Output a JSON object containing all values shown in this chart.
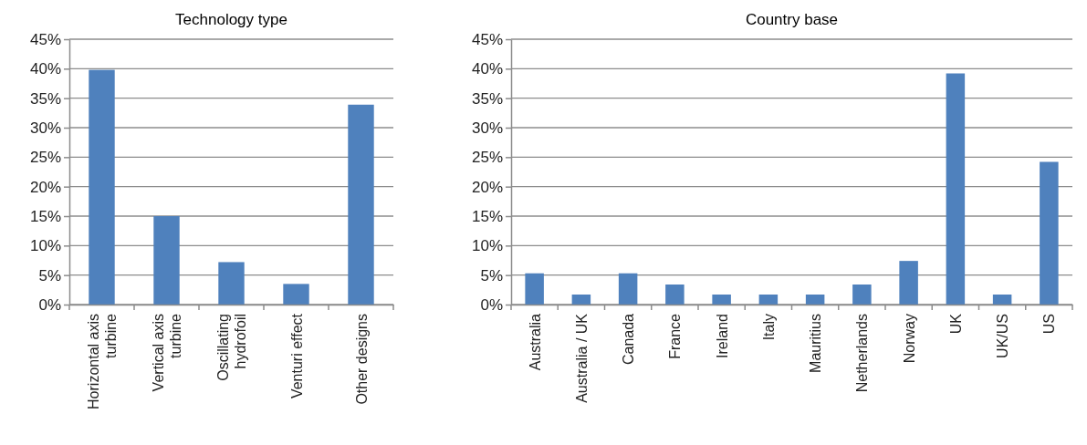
{
  "chart_data": [
    {
      "type": "bar",
      "title": "Technology type",
      "categories": [
        "Horizontal axis turbine",
        "Vertical axis turbine",
        "Oscillating hydrofoil",
        "Venturi effect",
        "Other designs"
      ],
      "values": [
        39.8,
        15,
        7.2,
        3.5,
        33.9
      ],
      "color": "#4f81bd",
      "ylim": [
        0,
        45
      ],
      "yticks": [
        {
          "value": 0,
          "label": "0%"
        },
        {
          "value": 5,
          "label": "5%"
        },
        {
          "value": 10,
          "label": "10%"
        },
        {
          "value": 15,
          "label": "15%"
        },
        {
          "value": 20,
          "label": "20%"
        },
        {
          "value": 25,
          "label": "25%"
        },
        {
          "value": 30,
          "label": "30%"
        },
        {
          "value": 35,
          "label": "35%"
        },
        {
          "value": 40,
          "label": "40%"
        },
        {
          "value": 45,
          "label": "45%"
        }
      ],
      "grid": "y"
    },
    {
      "type": "bar",
      "title": "Country base",
      "categories": [
        "Australia",
        "Australia / UK",
        "Canada",
        "France",
        "Ireland",
        "Italy",
        "Mauritius",
        "Netherlands",
        "Norway",
        "UK",
        "UK/US",
        "US"
      ],
      "values": [
        5.3,
        1.7,
        5.3,
        3.4,
        1.7,
        1.7,
        1.7,
        3.4,
        7.4,
        39.2,
        1.7,
        24.2
      ],
      "color": "#4f81bd",
      "ylim": [
        0,
        45
      ],
      "yticks": [
        {
          "value": 0,
          "label": "0%"
        },
        {
          "value": 5,
          "label": "5%"
        },
        {
          "value": 10,
          "label": "10%"
        },
        {
          "value": 15,
          "label": "15%"
        },
        {
          "value": 20,
          "label": "20%"
        },
        {
          "value": 25,
          "label": "25%"
        },
        {
          "value": 30,
          "label": "30%"
        },
        {
          "value": 35,
          "label": "35%"
        },
        {
          "value": 40,
          "label": "40%"
        },
        {
          "value": 45,
          "label": "45%"
        }
      ],
      "grid": "y"
    }
  ]
}
